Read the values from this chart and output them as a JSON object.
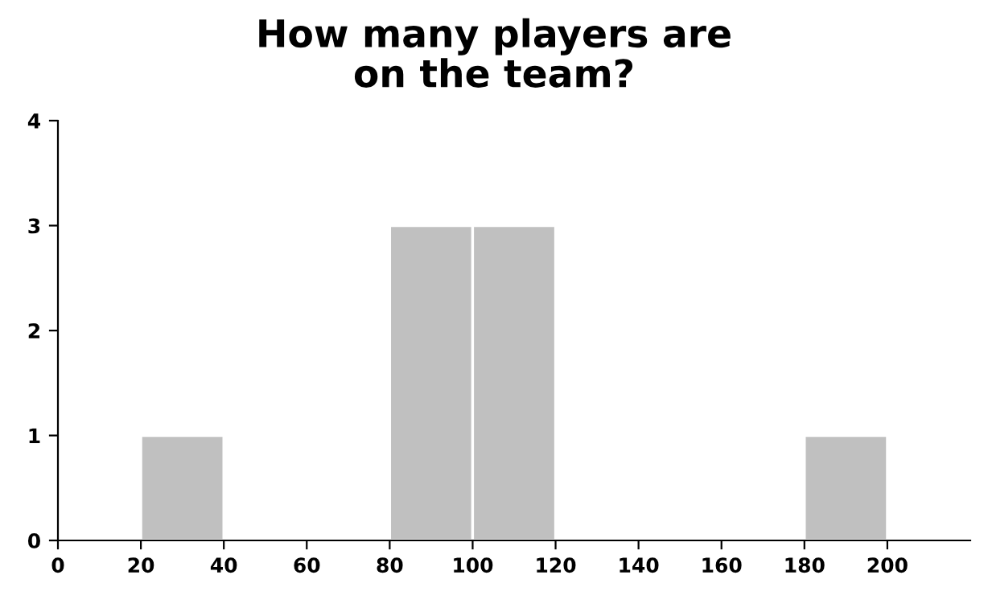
{
  "chart_data": {
    "type": "histogram",
    "title": "How many players are\non the team?",
    "bins": [
      0,
      20,
      40,
      60,
      80,
      100,
      120,
      140,
      160,
      180,
      200,
      220
    ],
    "values": [
      0,
      1,
      0,
      0,
      3,
      3,
      0,
      0,
      0,
      1,
      0
    ],
    "color": "#c0c0c0",
    "xlim": [
      0,
      220
    ],
    "xticks": [
      0,
      20,
      40,
      60,
      80,
      100,
      120,
      140,
      160,
      180,
      200
    ],
    "ylim": [
      0,
      4
    ],
    "yticks": [
      0,
      1,
      2,
      3,
      4
    ],
    "grid": false,
    "legend": false
  }
}
